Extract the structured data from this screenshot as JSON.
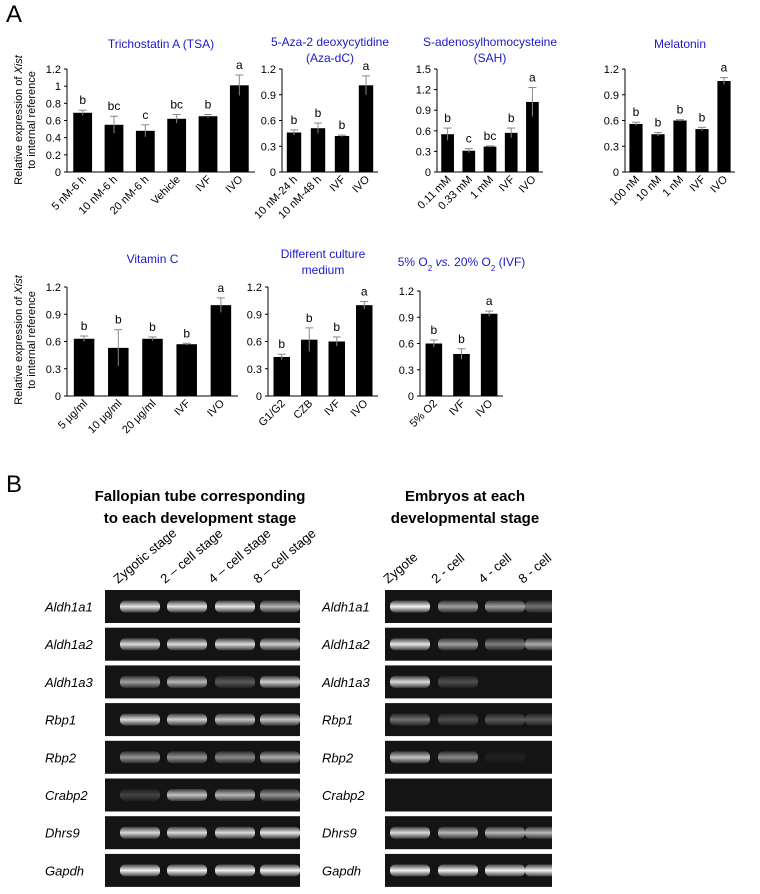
{
  "figure": {
    "panel_a": "A",
    "panel_b": "B"
  },
  "chart_data": [
    {
      "type": "bar",
      "title": "Trichostatin A (TSA)",
      "ylabel": [
        "Relative expression of",
        "Xist",
        "to internal reference"
      ],
      "categories": [
        "5 nM-6 h",
        "10 nM-6 h",
        "20 nM-6 h",
        "Vehicle",
        "IVF",
        "IVO"
      ],
      "values": [
        0.69,
        0.55,
        0.48,
        0.62,
        0.65,
        1.01
      ],
      "errors": [
        0.03,
        0.1,
        0.07,
        0.05,
        0.02,
        0.12
      ],
      "letters": [
        "b",
        "bc",
        "c",
        "bc",
        "b",
        "a"
      ],
      "color": "#000000",
      "ylim": [
        0,
        1.2
      ],
      "yticks": [
        0,
        0.2,
        0.4,
        0.6,
        0.8,
        1,
        1.2
      ]
    },
    {
      "type": "bar",
      "title": [
        "5-Aza-2 deoxycytidine",
        "(Aza-dC)"
      ],
      "categories": [
        "10 nM-24 h",
        "10 nM-48 h",
        "IVF",
        "IVO"
      ],
      "values": [
        0.46,
        0.51,
        0.42,
        1.01
      ],
      "errors": [
        0.03,
        0.06,
        0.01,
        0.11
      ],
      "letters": [
        "b",
        "b",
        "b",
        "a"
      ],
      "color": "#000000",
      "ylim": [
        0,
        1.2
      ],
      "yticks": [
        0,
        0.3,
        0.6,
        0.9,
        1.2
      ]
    },
    {
      "type": "bar",
      "title": [
        "S-adenosylhomocysteine",
        "(SAH)"
      ],
      "categories": [
        "0.11 mM",
        "0.33 mM",
        "1 mM",
        "IVF",
        "IVO"
      ],
      "values": [
        0.55,
        0.31,
        0.37,
        0.57,
        1.02
      ],
      "errors": [
        0.09,
        0.03,
        0.01,
        0.07,
        0.21
      ],
      "letters": [
        "b",
        "c",
        "bc",
        "b",
        "a"
      ],
      "color": "#000000",
      "ylim": [
        0,
        1.5
      ],
      "yticks": [
        0,
        0.3,
        0.6,
        0.9,
        1.2,
        1.5
      ]
    },
    {
      "type": "bar",
      "title": "Melatonin",
      "categories": [
        "100 nM",
        "10 nM",
        "1 nM",
        "IVF",
        "IVO"
      ],
      "values": [
        0.56,
        0.44,
        0.6,
        0.5,
        1.06
      ],
      "errors": [
        0.02,
        0.02,
        0.01,
        0.02,
        0.04
      ],
      "letters": [
        "b",
        "b",
        "b",
        "b",
        "a"
      ],
      "color": "#000000",
      "ylim": [
        0,
        1.2
      ],
      "yticks": [
        0,
        0.3,
        0.6,
        0.9,
        1.2
      ]
    },
    {
      "type": "bar",
      "title": "Vitamin C",
      "ylabel": [
        "Relative expression of",
        "Xist",
        "to internal reference"
      ],
      "categories": [
        "5 μg/ml",
        "10 μg/ml",
        "20 μg/ml",
        "IVF",
        "IVO"
      ],
      "values": [
        0.63,
        0.53,
        0.63,
        0.57,
        1.0
      ],
      "errors": [
        0.03,
        0.2,
        0.02,
        0.01,
        0.08
      ],
      "letters": [
        "b",
        "b",
        "b",
        "b",
        "a"
      ],
      "color": "#000000",
      "ylim": [
        0,
        1.2
      ],
      "yticks": [
        0,
        0.3,
        0.6,
        0.9,
        1.2
      ]
    },
    {
      "type": "bar",
      "title": [
        "Different culture",
        "medium"
      ],
      "categories": [
        "G1/G2",
        "CZB",
        "IVF",
        "IVO"
      ],
      "values": [
        0.43,
        0.62,
        0.6,
        1.0
      ],
      "errors": [
        0.03,
        0.13,
        0.05,
        0.04
      ],
      "letters": [
        "b",
        "b",
        "b",
        "a"
      ],
      "color": "#000000",
      "ylim": [
        0,
        1.2
      ],
      "yticks": [
        0,
        0.3,
        0.6,
        0.9,
        1.2
      ]
    },
    {
      "type": "bar",
      "title_parts": [
        "5% O",
        "2",
        " vs. ",
        "20% O",
        "2",
        " (IVF)"
      ],
      "categories": [
        "5% O2",
        "IVF",
        "IVO"
      ],
      "values": [
        0.6,
        0.48,
        0.94
      ],
      "errors": [
        0.04,
        0.06,
        0.03
      ],
      "letters": [
        "b",
        "b",
        "a"
      ],
      "color": "#000000",
      "ylim": [
        0,
        1.2
      ],
      "yticks": [
        0,
        0.3,
        0.6,
        0.9,
        1.2
      ]
    }
  ],
  "gels": [
    {
      "header": [
        "Fallopian tube corresponding",
        "to each development stage"
      ],
      "lanes": [
        "Zygotic stage",
        "2 – cell stage",
        "4 – cell stage",
        "8 – cell stage"
      ],
      "genes": [
        "Aldh1a1",
        "Aldh1a2",
        "Aldh1a3",
        "Rbp1",
        "Rbp2",
        "Crabp2",
        "Dhrs9",
        "Gapdh"
      ]
    },
    {
      "header": [
        "Embryos at each",
        "developmental stage"
      ],
      "lanes": [
        "Zygote",
        "2 - cell",
        "4 - cell",
        "8 - cell"
      ],
      "genes": [
        "Aldh1a1",
        "Aldh1a2",
        "Aldh1a3",
        "Rbp1",
        "Rbp2",
        "Crabp2",
        "Dhrs9",
        "Gapdh"
      ]
    }
  ]
}
